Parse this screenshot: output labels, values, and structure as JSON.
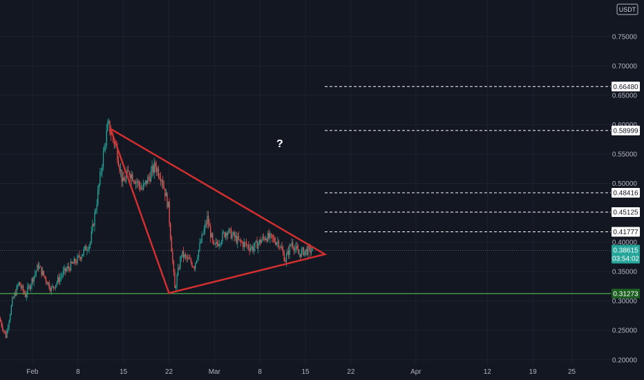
{
  "currency_label": "USDT",
  "question_mark": "?",
  "chart_data": {
    "type": "candlestick",
    "title": "",
    "xlabel": "",
    "ylabel": "",
    "ylim": [
      0.1915,
      0.812
    ],
    "x_range": [
      "2021-01-27",
      "2021-05-01"
    ],
    "y_ticks": [
      "0.75000",
      "0.70000",
      "0.65000",
      "0.60000",
      "0.55000",
      "0.50000",
      "0.45000",
      "0.40000",
      "0.35000",
      "0.30000",
      "0.25000",
      "0.20000"
    ],
    "y_tick_values": [
      0.75,
      0.7,
      0.65,
      0.6,
      0.55,
      0.5,
      0.45,
      0.4,
      0.35,
      0.3,
      0.25,
      0.2
    ],
    "x_ticks": [
      {
        "label": "Feb",
        "date": "2021-02-01"
      },
      {
        "label": "8",
        "date": "2021-02-08"
      },
      {
        "label": "15",
        "date": "2021-02-15"
      },
      {
        "label": "22",
        "date": "2021-02-22"
      },
      {
        "label": "Mar",
        "date": "2021-03-01"
      },
      {
        "label": "8",
        "date": "2021-03-08"
      },
      {
        "label": "15",
        "date": "2021-03-15"
      },
      {
        "label": "22",
        "date": "2021-03-22"
      },
      {
        "label": "Apr",
        "date": "2021-04-01"
      },
      {
        "label": "12",
        "date": "2021-04-12"
      },
      {
        "label": "19",
        "date": "2021-04-19"
      },
      {
        "label": "25",
        "date": "2021-04-25"
      }
    ],
    "colors": {
      "up": "#26a69a",
      "down": "#ef5350",
      "background": "#131722",
      "triangle": "#d32f2f",
      "support": "#4caf50",
      "grid": "#1e222d"
    },
    "price_path": [
      [
        "2021-01-27",
        0.27
      ],
      [
        "2021-01-28",
        0.24
      ],
      [
        "2021-01-29",
        0.3
      ],
      [
        "2021-01-30",
        0.33
      ],
      [
        "2021-01-31",
        0.31
      ],
      [
        "2021-02-02",
        0.36
      ],
      [
        "2021-02-04",
        0.32
      ],
      [
        "2021-02-06",
        0.35
      ],
      [
        "2021-02-08",
        0.37
      ],
      [
        "2021-02-10",
        0.4
      ],
      [
        "2021-02-11",
        0.47
      ],
      [
        "2021-02-12",
        0.55
      ],
      [
        "2021-02-12T18:00",
        0.6
      ],
      [
        "2021-02-14",
        0.56
      ],
      [
        "2021-02-15",
        0.5
      ],
      [
        "2021-02-16",
        0.52
      ],
      [
        "2021-02-18",
        0.49
      ],
      [
        "2021-02-20",
        0.53
      ],
      [
        "2021-02-21",
        0.51
      ],
      [
        "2021-02-22",
        0.46
      ],
      [
        "2021-02-23",
        0.32
      ],
      [
        "2021-02-24",
        0.38
      ],
      [
        "2021-02-26",
        0.36
      ],
      [
        "2021-02-28",
        0.44
      ],
      [
        "2021-03-01",
        0.39
      ],
      [
        "2021-03-03",
        0.42
      ],
      [
        "2021-03-05",
        0.4
      ],
      [
        "2021-03-07",
        0.39
      ],
      [
        "2021-03-09",
        0.41
      ],
      [
        "2021-03-11",
        0.4
      ],
      [
        "2021-03-12",
        0.37
      ],
      [
        "2021-03-13",
        0.4
      ],
      [
        "2021-03-14",
        0.38
      ],
      [
        "2021-03-15",
        0.385
      ],
      [
        "2021-03-16",
        0.386
      ]
    ],
    "triangle": [
      {
        "date": "2021-02-13",
        "price": 0.593
      },
      {
        "date": "2021-03-18",
        "price": 0.3795
      },
      {
        "date": "2021-02-22",
        "price": 0.3135
      }
    ],
    "levels": [
      {
        "value": 0.6648,
        "label": "0.66480",
        "style": "dashed"
      },
      {
        "value": 0.58999,
        "label": "0.58999",
        "style": "dashed"
      },
      {
        "value": 0.48416,
        "label": "0.48416",
        "style": "dashed"
      },
      {
        "value": 0.45125,
        "label": "0.45125",
        "style": "dashed"
      },
      {
        "value": 0.41777,
        "label": "0.41777",
        "style": "dashed"
      },
      {
        "value": 0.31273,
        "label": "0.31273",
        "style": "support"
      }
    ],
    "current_price": {
      "value": 0.38615,
      "label": "0.38615",
      "countdown": "03:54:02"
    }
  }
}
